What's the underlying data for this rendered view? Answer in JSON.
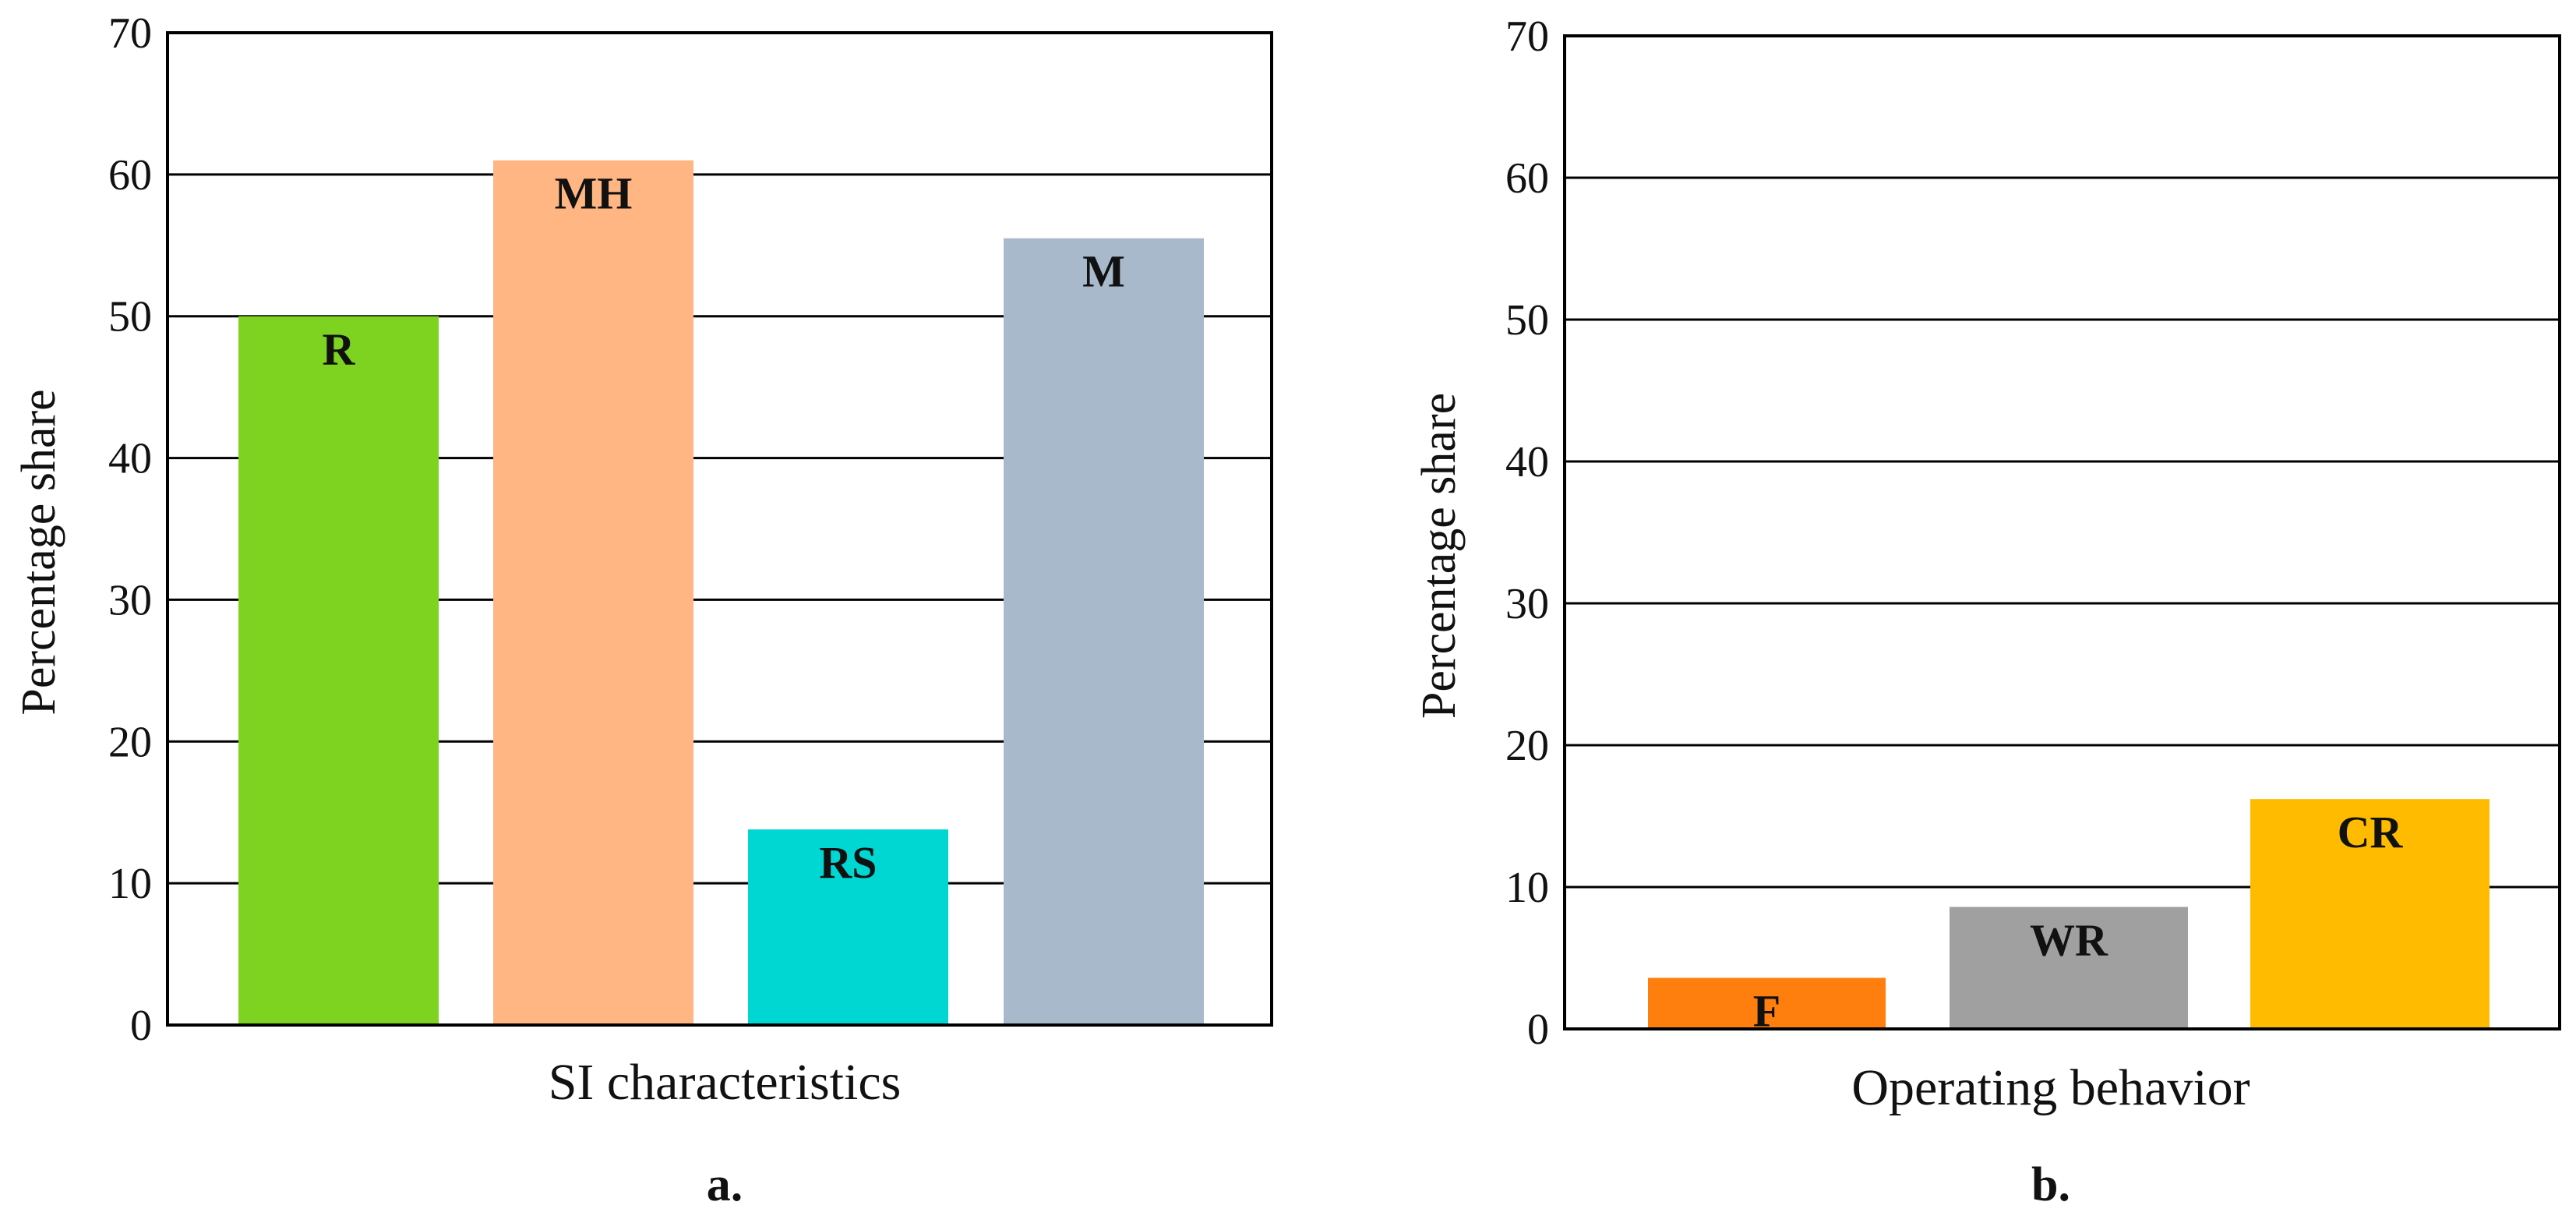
{
  "chart_data": [
    {
      "type": "bar",
      "panel_label": "a.",
      "xlabel": "SI characteristics",
      "ylabel": "Percentage share",
      "ylim": [
        0,
        70
      ],
      "yticks": [
        0,
        10,
        20,
        30,
        40,
        50,
        60,
        70
      ],
      "grid": true,
      "categories": [
        "R",
        "MH",
        "RS",
        "M"
      ],
      "values": [
        50,
        61,
        13.8,
        55.5
      ],
      "colors": [
        "#7ED321",
        "#FFB682",
        "#00D6D2",
        "#A8B9CC"
      ]
    },
    {
      "type": "bar",
      "panel_label": "b.",
      "xlabel": "Operating behavior",
      "ylabel": "Percentage share",
      "ylim": [
        0,
        70
      ],
      "yticks": [
        0,
        10,
        20,
        30,
        40,
        50,
        60,
        70
      ],
      "grid": true,
      "categories": [
        "F",
        "WR",
        "CR"
      ],
      "values": [
        3.6,
        8.6,
        16.2
      ],
      "colors": [
        "#FF7F0E",
        "#A0A0A0",
        "#FFBB00"
      ]
    }
  ]
}
